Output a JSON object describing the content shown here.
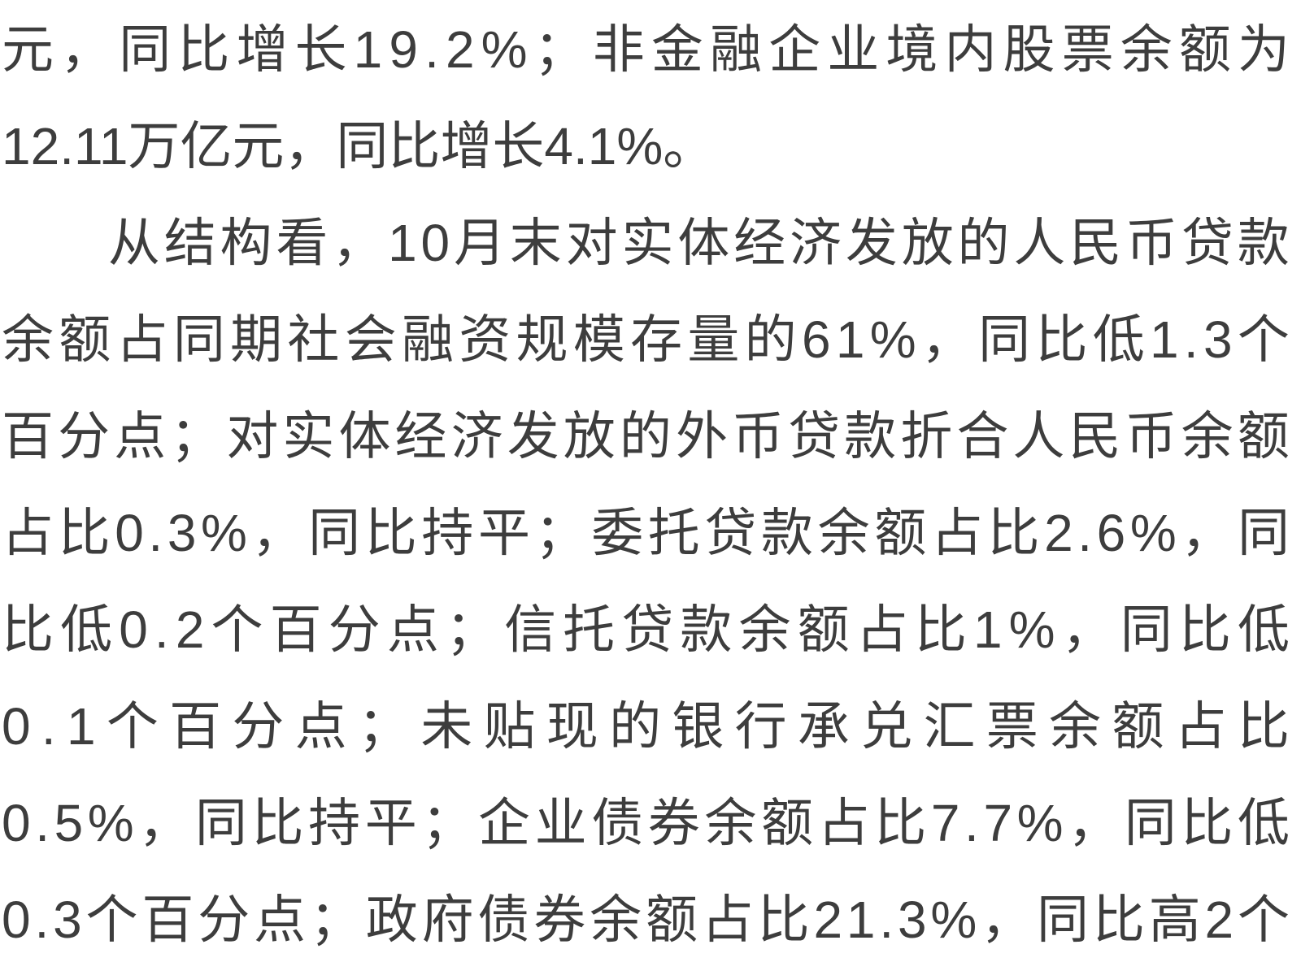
{
  "page": {
    "background_color": "#ffffff",
    "text_color": "#3d3d3d"
  },
  "article": {
    "lines": [
      {
        "text": "元，同比增长19.2%；非金融企业境内股票余额为",
        "justified": true,
        "indent": false
      },
      {
        "text": "12.11万亿元，同比增长4.1%。",
        "justified": false,
        "indent": false
      },
      {
        "text": "从结构看，10月末对实体经济发放的人民币贷款",
        "justified": true,
        "indent": true
      },
      {
        "text": "余额占同期社会融资规模存量的61%，同比低1.3个",
        "justified": true,
        "indent": false
      },
      {
        "text": "百分点；对实体经济发放的外币贷款折合人民币余额",
        "justified": true,
        "indent": false
      },
      {
        "text": "占比0.3%，同比持平；委托贷款余额占比2.6%，同",
        "justified": true,
        "indent": false
      },
      {
        "text": "比低0.2个百分点；信托贷款余额占比1%，同比低",
        "justified": true,
        "indent": false
      },
      {
        "text": "0.1个百分点；未贴现的银行承兑汇票余额占比",
        "justified": true,
        "indent": false
      },
      {
        "text": "0.5%，同比持平；企业债券余额占比7.7%，同比低",
        "justified": true,
        "indent": false
      },
      {
        "text": "0.3个百分点；政府债券余额占比21.3%，同比高2个",
        "justified": true,
        "indent": false
      }
    ]
  }
}
